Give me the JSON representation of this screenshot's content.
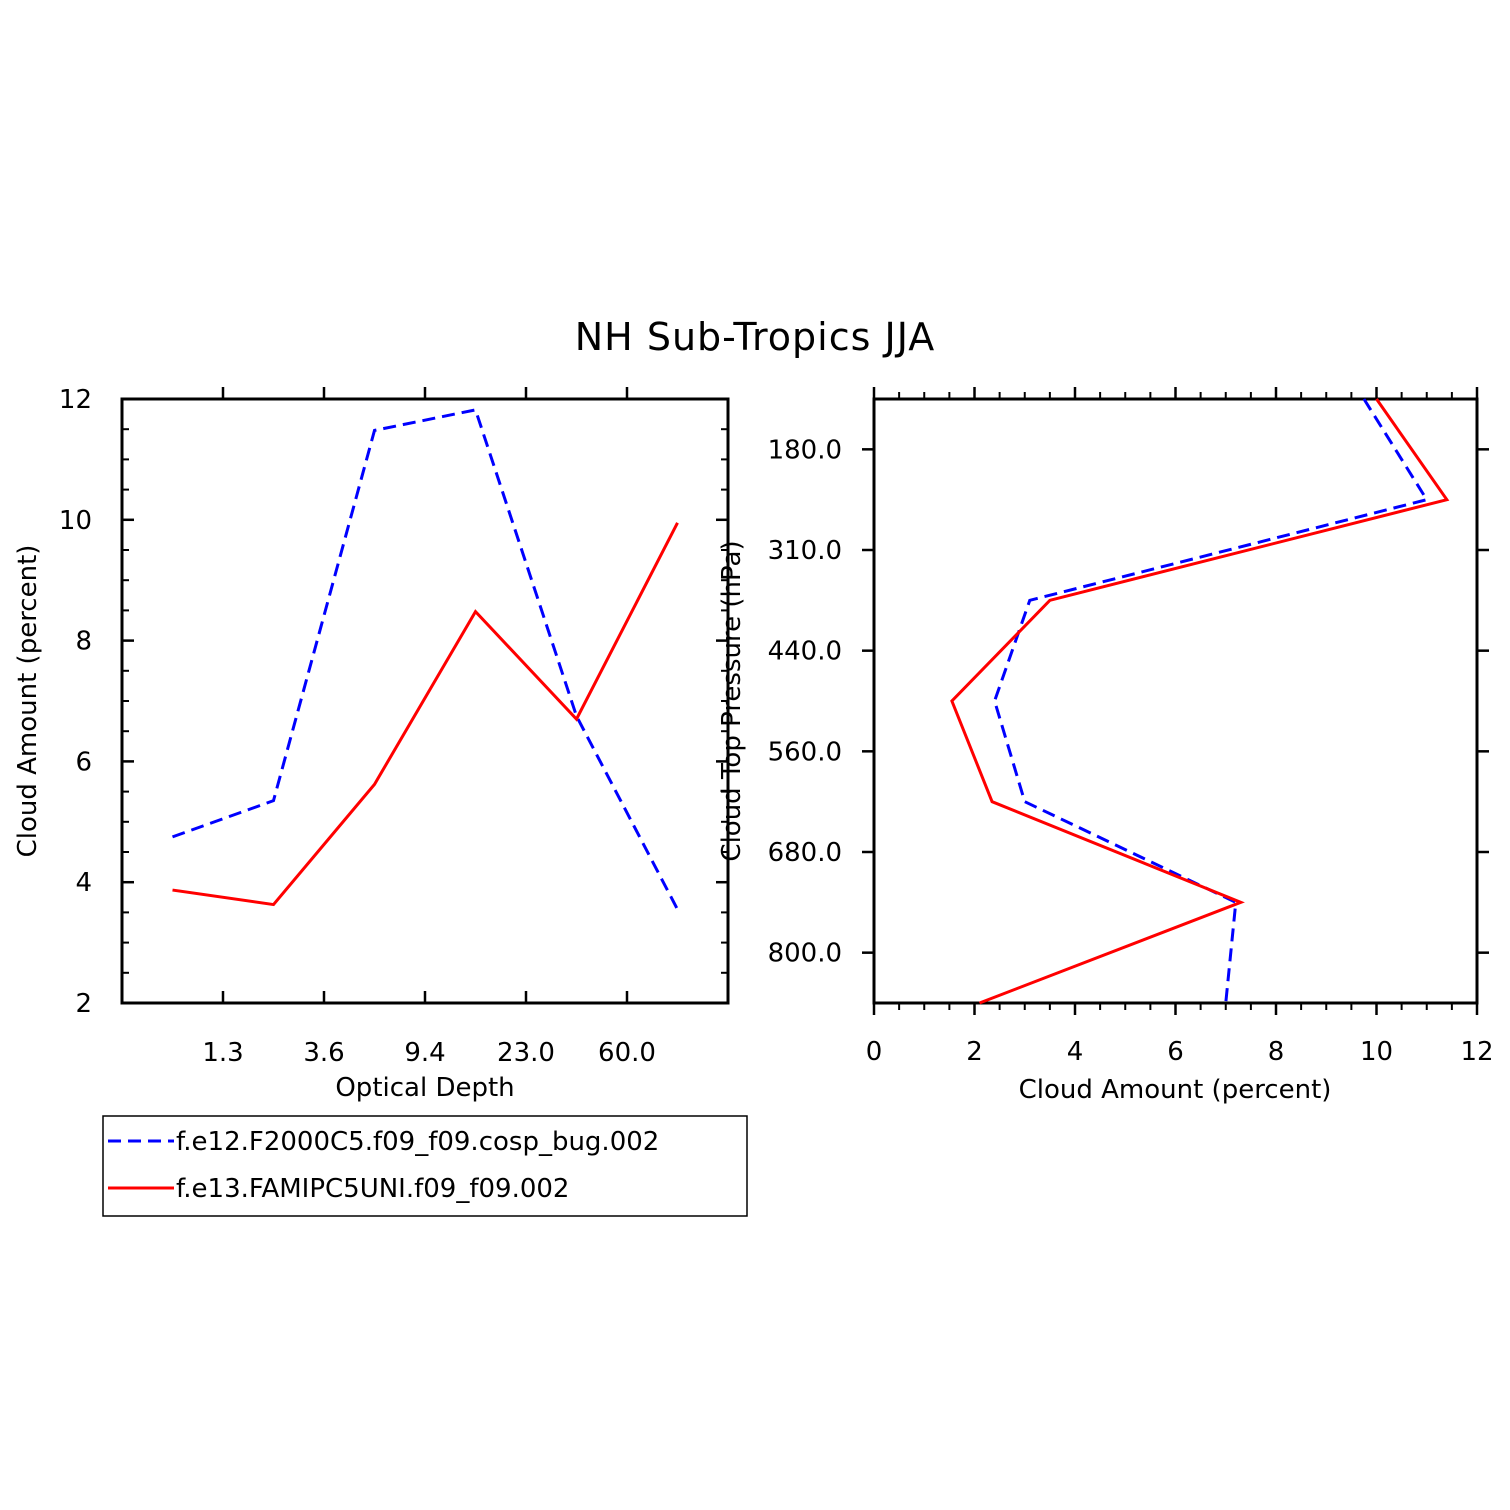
{
  "title": "NH Sub-Tropics JJA",
  "chart_data": [
    {
      "type": "line",
      "xlabel": "Optical Depth",
      "ylabel": "Cloud Amount (percent)",
      "categories": [
        "1.3",
        "3.6",
        "9.4",
        "23.0",
        "60.0"
      ],
      "x": [
        0.5,
        1.5,
        2.5,
        3.5,
        4.5,
        5.5
      ],
      "ylim": [
        2,
        12
      ],
      "yticks": [
        2,
        4,
        6,
        8,
        10,
        12
      ],
      "series": [
        {
          "name": "f.e12.F2000C5.f09_f09.cosp_bug.002",
          "color": "#0000ff",
          "dash": true,
          "values": [
            4.75,
            5.35,
            11.48,
            11.82,
            6.75,
            3.55
          ]
        },
        {
          "name": "f.e13.FAMIPC5UNI.f09_f09.002",
          "color": "#ff0000",
          "dash": false,
          "values": [
            3.87,
            3.63,
            5.62,
            8.48,
            6.7,
            9.95
          ]
        }
      ]
    },
    {
      "type": "line",
      "xlabel": "Cloud Amount (percent)",
      "ylabel": "Cloud Top Pressure (hPa)",
      "xlim": [
        0,
        12
      ],
      "xticks": [
        "0",
        "2",
        "4",
        "6",
        "8",
        "10",
        "12"
      ],
      "pressure_ticks": [
        "180.0",
        "310.0",
        "440.0",
        "560.0",
        "680.0",
        "800.0"
      ],
      "levels": [
        0,
        1,
        2,
        3,
        4,
        5,
        6
      ],
      "series": [
        {
          "name": "f.e12.F2000C5.f09_f09.cosp_bug.002",
          "color": "#0000ff",
          "dash": true,
          "values": [
            9.75,
            11.0,
            3.1,
            2.4,
            3.0,
            7.2,
            7.0
          ]
        },
        {
          "name": "f.e13.FAMIPC5UNI.f09_f09.002",
          "color": "#ff0000",
          "dash": false,
          "values": [
            10.0,
            11.4,
            3.5,
            1.55,
            2.35,
            7.3,
            2.1
          ]
        }
      ]
    }
  ],
  "legend": [
    {
      "label": "f.e12.F2000C5.f09_f09.cosp_bug.002",
      "color": "#0000ff",
      "dash": true
    },
    {
      "label": "f.e13.FAMIPC5UNI.f09_f09.002",
      "color": "#ff0000",
      "dash": false
    }
  ]
}
